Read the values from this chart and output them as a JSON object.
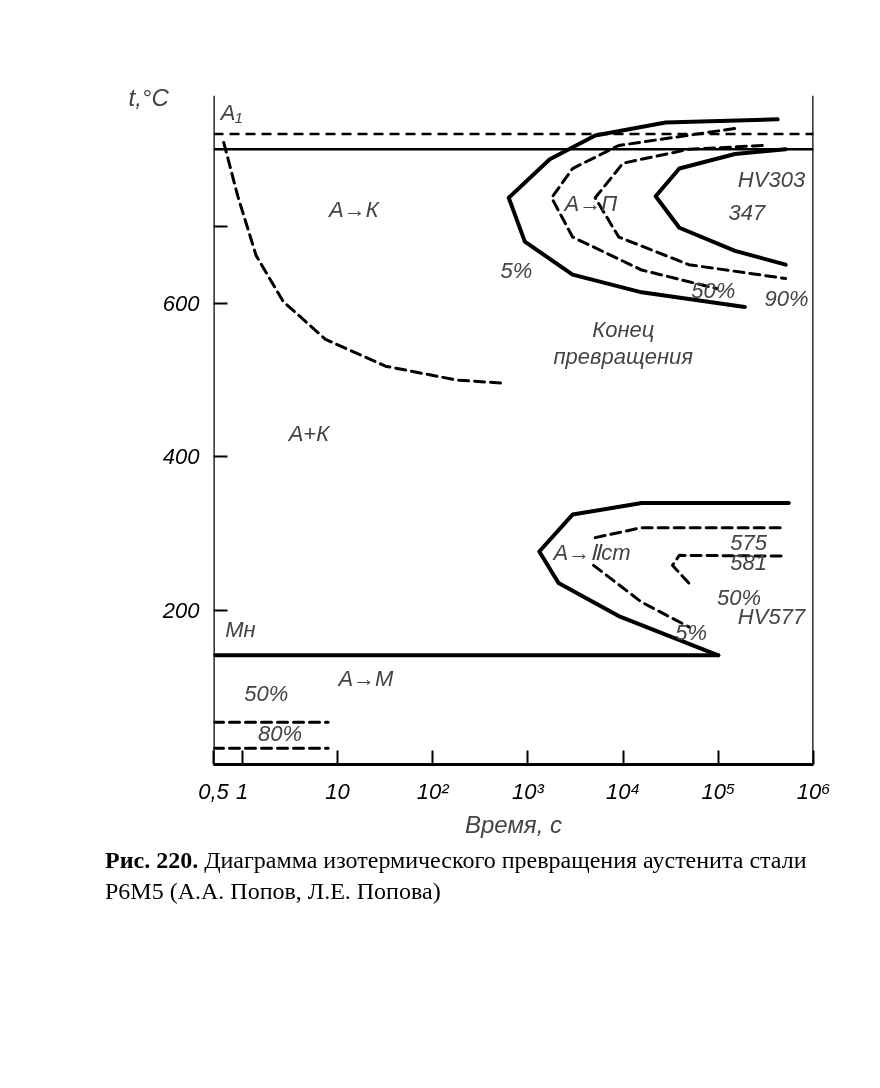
{
  "chart_data": {
    "type": "line",
    "xlabel": "Время, с",
    "ylabel": "t,°C",
    "log": "x",
    "grid": false,
    "xlim": [
      0.5,
      1000000
    ],
    "ylim": [
      0,
      870
    ],
    "xticks": [
      {
        "value": 0.5,
        "label": "0,5"
      },
      1,
      10,
      {
        "value": 100,
        "label": "10²"
      },
      {
        "value": 1000,
        "label": "10³"
      },
      {
        "value": 10000,
        "label": "10⁴"
      },
      {
        "value": 100000,
        "label": "10⁵"
      },
      {
        "value": 1000000,
        "label": "10⁶"
      }
    ],
    "yticks": [
      200,
      400,
      600,
      {
        "value": 700,
        "label": null
      }
    ],
    "series": [
      {
        "color": "#000000",
        "line_style": "dashed",
        "x": [
          0.64,
          0.9,
          1.4,
          2.7,
          7.5,
          32,
          178,
          540
        ],
        "values": [
          809,
          739,
          662,
          602,
          553,
          518,
          500,
          496
        ]
      },
      {
        "color": "#000000",
        "line_style": "solid",
        "x": [
          420000,
          28000,
          5100,
          1700,
          630,
          930,
          2950,
          15700,
          190000
        ],
        "values": [
          839,
          835,
          818,
          787,
          737,
          680,
          637,
          614,
          595
        ]
      },
      {
        "color": "#000000",
        "line_style": "dashed",
        "x": [
          148000,
          9000,
          2950,
          1780,
          2950,
          15700,
          96000
        ],
        "values": [
          827,
          805,
          775,
          737,
          686,
          643,
          619
        ]
      },
      {
        "color": "#000000",
        "line_style": "dashed",
        "x": [
          290000,
          49000,
          10000,
          5100,
          9000,
          49000,
          510000
        ],
        "values": [
          805,
          800,
          782,
          737,
          686,
          650,
          632
        ]
      },
      {
        "color": "#000000",
        "line_style": "solid",
        "x": [
          510000,
          150000,
          39000,
          22000,
          39000,
          150000,
          510000
        ],
        "values": [
          800,
          794,
          775,
          739,
          698,
          668,
          650
        ]
      },
      {
        "color": "#000000",
        "line_style": "solid",
        "x": [
          550000,
          15700,
          2950,
          1320,
          2100,
          9000,
          100000
        ],
        "values": [
          340,
          340,
          325,
          277,
          236,
          193,
          142
        ]
      },
      {
        "color": "#000000",
        "line_style": "dashed",
        "x": [
          4900,
          15700,
          49000
        ],
        "values": [
          259,
          211,
          179
        ]
      },
      {
        "color": "#000000",
        "line_style": "dashed",
        "x": [
          5100,
          15700,
          510000
        ],
        "values": [
          295,
          308,
          308
        ]
      },
      {
        "color": "#000000",
        "line_style": "dashed",
        "x": [
          49000,
          33000,
          39000,
          510000
        ],
        "values": [
          236,
          259,
          272,
          271
        ]
      },
      {
        "color": "#000000",
        "line_style": "solid",
        "x": [
          0.5,
          100000
        ],
        "values": [
          142,
          142
        ]
      },
      {
        "color": "#000000",
        "line_style": "dashed",
        "x": [
          0.5,
          8
        ],
        "values": [
          55,
          55
        ]
      },
      {
        "color": "#000000",
        "line_style": "dashed",
        "x": [
          0.5,
          8
        ],
        "values": [
          21,
          21
        ]
      }
    ],
    "ref_lines": [
      {
        "axis": "x",
        "value": 0.5,
        "line_style": "solid"
      },
      {
        "axis": "y",
        "value": 800,
        "line_style": "solid"
      },
      {
        "axis": "y",
        "value": 820,
        "line_style": "dashed"
      },
      {
        "axis": "x",
        "value": 1000000,
        "line_style": "solid"
      }
    ],
    "annotations": [
      "A₁",
      "А→К",
      "А→П",
      "5%",
      "50%",
      "90%",
      "HV303",
      "347",
      "Конец\nпревращения",
      "А+К",
      "А→Ⅱст",
      "575",
      "581",
      "50%",
      "5%",
      "HV577",
      "Мн",
      "А→М",
      "50%",
      "80%",
      "Рис. 220. Диаграмма изотермического превращения аустенита стали Р6М5 (А.А. Попов, Л.Е. Попова)"
    ]
  }
}
